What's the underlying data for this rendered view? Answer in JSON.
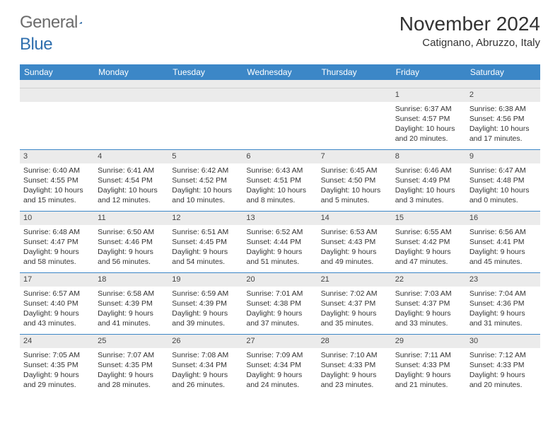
{
  "logo": {
    "text1": "General",
    "text2": "Blue"
  },
  "title": "November 2024",
  "location": "Catignano, Abruzzo, Italy",
  "colors": {
    "header_bg": "#3c87c7",
    "header_text": "#ffffff",
    "daynum_bg": "#ebebeb",
    "week_border": "#3c87c7",
    "body_text": "#333333",
    "logo_gray": "#6b6b6b",
    "logo_blue": "#2f6fae"
  },
  "typography": {
    "title_fontsize": 28,
    "location_fontsize": 15,
    "weekday_fontsize": 12,
    "cell_fontsize": 10.5
  },
  "weekdays": [
    "Sunday",
    "Monday",
    "Tuesday",
    "Wednesday",
    "Thursday",
    "Friday",
    "Saturday"
  ],
  "weeks": [
    [
      {
        "n": "",
        "sr": "",
        "ss": "",
        "d1": "",
        "d2": ""
      },
      {
        "n": "",
        "sr": "",
        "ss": "",
        "d1": "",
        "d2": ""
      },
      {
        "n": "",
        "sr": "",
        "ss": "",
        "d1": "",
        "d2": ""
      },
      {
        "n": "",
        "sr": "",
        "ss": "",
        "d1": "",
        "d2": ""
      },
      {
        "n": "",
        "sr": "",
        "ss": "",
        "d1": "",
        "d2": ""
      },
      {
        "n": "1",
        "sr": "Sunrise: 6:37 AM",
        "ss": "Sunset: 4:57 PM",
        "d1": "Daylight: 10 hours",
        "d2": "and 20 minutes."
      },
      {
        "n": "2",
        "sr": "Sunrise: 6:38 AM",
        "ss": "Sunset: 4:56 PM",
        "d1": "Daylight: 10 hours",
        "d2": "and 17 minutes."
      }
    ],
    [
      {
        "n": "3",
        "sr": "Sunrise: 6:40 AM",
        "ss": "Sunset: 4:55 PM",
        "d1": "Daylight: 10 hours",
        "d2": "and 15 minutes."
      },
      {
        "n": "4",
        "sr": "Sunrise: 6:41 AM",
        "ss": "Sunset: 4:54 PM",
        "d1": "Daylight: 10 hours",
        "d2": "and 12 minutes."
      },
      {
        "n": "5",
        "sr": "Sunrise: 6:42 AM",
        "ss": "Sunset: 4:52 PM",
        "d1": "Daylight: 10 hours",
        "d2": "and 10 minutes."
      },
      {
        "n": "6",
        "sr": "Sunrise: 6:43 AM",
        "ss": "Sunset: 4:51 PM",
        "d1": "Daylight: 10 hours",
        "d2": "and 8 minutes."
      },
      {
        "n": "7",
        "sr": "Sunrise: 6:45 AM",
        "ss": "Sunset: 4:50 PM",
        "d1": "Daylight: 10 hours",
        "d2": "and 5 minutes."
      },
      {
        "n": "8",
        "sr": "Sunrise: 6:46 AM",
        "ss": "Sunset: 4:49 PM",
        "d1": "Daylight: 10 hours",
        "d2": "and 3 minutes."
      },
      {
        "n": "9",
        "sr": "Sunrise: 6:47 AM",
        "ss": "Sunset: 4:48 PM",
        "d1": "Daylight: 10 hours",
        "d2": "and 0 minutes."
      }
    ],
    [
      {
        "n": "10",
        "sr": "Sunrise: 6:48 AM",
        "ss": "Sunset: 4:47 PM",
        "d1": "Daylight: 9 hours",
        "d2": "and 58 minutes."
      },
      {
        "n": "11",
        "sr": "Sunrise: 6:50 AM",
        "ss": "Sunset: 4:46 PM",
        "d1": "Daylight: 9 hours",
        "d2": "and 56 minutes."
      },
      {
        "n": "12",
        "sr": "Sunrise: 6:51 AM",
        "ss": "Sunset: 4:45 PM",
        "d1": "Daylight: 9 hours",
        "d2": "and 54 minutes."
      },
      {
        "n": "13",
        "sr": "Sunrise: 6:52 AM",
        "ss": "Sunset: 4:44 PM",
        "d1": "Daylight: 9 hours",
        "d2": "and 51 minutes."
      },
      {
        "n": "14",
        "sr": "Sunrise: 6:53 AM",
        "ss": "Sunset: 4:43 PM",
        "d1": "Daylight: 9 hours",
        "d2": "and 49 minutes."
      },
      {
        "n": "15",
        "sr": "Sunrise: 6:55 AM",
        "ss": "Sunset: 4:42 PM",
        "d1": "Daylight: 9 hours",
        "d2": "and 47 minutes."
      },
      {
        "n": "16",
        "sr": "Sunrise: 6:56 AM",
        "ss": "Sunset: 4:41 PM",
        "d1": "Daylight: 9 hours",
        "d2": "and 45 minutes."
      }
    ],
    [
      {
        "n": "17",
        "sr": "Sunrise: 6:57 AM",
        "ss": "Sunset: 4:40 PM",
        "d1": "Daylight: 9 hours",
        "d2": "and 43 minutes."
      },
      {
        "n": "18",
        "sr": "Sunrise: 6:58 AM",
        "ss": "Sunset: 4:39 PM",
        "d1": "Daylight: 9 hours",
        "d2": "and 41 minutes."
      },
      {
        "n": "19",
        "sr": "Sunrise: 6:59 AM",
        "ss": "Sunset: 4:39 PM",
        "d1": "Daylight: 9 hours",
        "d2": "and 39 minutes."
      },
      {
        "n": "20",
        "sr": "Sunrise: 7:01 AM",
        "ss": "Sunset: 4:38 PM",
        "d1": "Daylight: 9 hours",
        "d2": "and 37 minutes."
      },
      {
        "n": "21",
        "sr": "Sunrise: 7:02 AM",
        "ss": "Sunset: 4:37 PM",
        "d1": "Daylight: 9 hours",
        "d2": "and 35 minutes."
      },
      {
        "n": "22",
        "sr": "Sunrise: 7:03 AM",
        "ss": "Sunset: 4:37 PM",
        "d1": "Daylight: 9 hours",
        "d2": "and 33 minutes."
      },
      {
        "n": "23",
        "sr": "Sunrise: 7:04 AM",
        "ss": "Sunset: 4:36 PM",
        "d1": "Daylight: 9 hours",
        "d2": "and 31 minutes."
      }
    ],
    [
      {
        "n": "24",
        "sr": "Sunrise: 7:05 AM",
        "ss": "Sunset: 4:35 PM",
        "d1": "Daylight: 9 hours",
        "d2": "and 29 minutes."
      },
      {
        "n": "25",
        "sr": "Sunrise: 7:07 AM",
        "ss": "Sunset: 4:35 PM",
        "d1": "Daylight: 9 hours",
        "d2": "and 28 minutes."
      },
      {
        "n": "26",
        "sr": "Sunrise: 7:08 AM",
        "ss": "Sunset: 4:34 PM",
        "d1": "Daylight: 9 hours",
        "d2": "and 26 minutes."
      },
      {
        "n": "27",
        "sr": "Sunrise: 7:09 AM",
        "ss": "Sunset: 4:34 PM",
        "d1": "Daylight: 9 hours",
        "d2": "and 24 minutes."
      },
      {
        "n": "28",
        "sr": "Sunrise: 7:10 AM",
        "ss": "Sunset: 4:33 PM",
        "d1": "Daylight: 9 hours",
        "d2": "and 23 minutes."
      },
      {
        "n": "29",
        "sr": "Sunrise: 7:11 AM",
        "ss": "Sunset: 4:33 PM",
        "d1": "Daylight: 9 hours",
        "d2": "and 21 minutes."
      },
      {
        "n": "30",
        "sr": "Sunrise: 7:12 AM",
        "ss": "Sunset: 4:33 PM",
        "d1": "Daylight: 9 hours",
        "d2": "and 20 minutes."
      }
    ]
  ]
}
